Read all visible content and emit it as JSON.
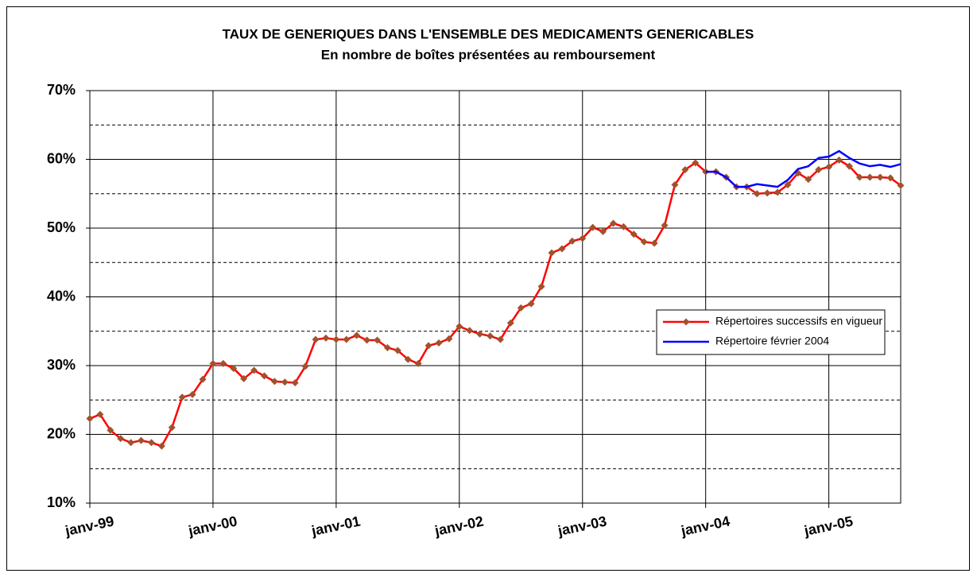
{
  "chart_data": {
    "type": "line",
    "title": "TAUX DE GENERIQUES DANS L'ENSEMBLE DES MEDICAMENTS GENERICABLES",
    "subtitle": "En nombre de boîtes présentées au remboursement",
    "categories": [
      "janv-99",
      null,
      null,
      null,
      null,
      null,
      null,
      null,
      null,
      null,
      null,
      null,
      "janv-00",
      null,
      null,
      null,
      null,
      null,
      null,
      null,
      null,
      null,
      null,
      null,
      "janv-01",
      null,
      null,
      null,
      null,
      null,
      null,
      null,
      null,
      null,
      null,
      null,
      "janv-02",
      null,
      null,
      null,
      null,
      null,
      null,
      null,
      null,
      null,
      null,
      null,
      "janv-03",
      null,
      null,
      null,
      null,
      null,
      null,
      null,
      null,
      null,
      null,
      null,
      "janv-04",
      null,
      null,
      null,
      null,
      null,
      null,
      null,
      null,
      null,
      null,
      null,
      "janv-05",
      null,
      null,
      null,
      null,
      null,
      null,
      null
    ],
    "series": [
      {
        "name": "Répertoires successifs en vigueur",
        "color": "#ff0000",
        "marker_color": "#a0522d",
        "marker": "diamond",
        "values": [
          22.3,
          22.9,
          20.6,
          19.4,
          18.8,
          19.1,
          18.8,
          18.3,
          21.0,
          25.4,
          25.8,
          28.0,
          30.3,
          30.3,
          29.6,
          28.1,
          29.3,
          28.5,
          27.7,
          27.6,
          27.5,
          29.9,
          33.8,
          34.0,
          33.8,
          33.8,
          34.4,
          33.7,
          33.7,
          32.6,
          32.2,
          30.9,
          30.3,
          32.9,
          33.3,
          33.9,
          35.7,
          35.1,
          34.6,
          34.3,
          33.8,
          36.2,
          38.4,
          39.0,
          41.5,
          46.4,
          47.0,
          48.1,
          48.5,
          50.1,
          49.5,
          50.7,
          50.2,
          49.1,
          48.0,
          47.8,
          50.4,
          56.3,
          58.5,
          59.5,
          58.2,
          58.2,
          57.4,
          56.0,
          56.0,
          55.0,
          55.1,
          55.2,
          56.3,
          58.0,
          57.1,
          58.5,
          58.9,
          59.9,
          59.0,
          57.4,
          57.4,
          57.4,
          57.3,
          56.2
        ]
      },
      {
        "name": "Répertoire février 2004",
        "color": "#0000ff",
        "marker": "none",
        "values": [
          null,
          null,
          null,
          null,
          null,
          null,
          null,
          null,
          null,
          null,
          null,
          null,
          null,
          null,
          null,
          null,
          null,
          null,
          null,
          null,
          null,
          null,
          null,
          null,
          null,
          null,
          null,
          null,
          null,
          null,
          null,
          null,
          null,
          null,
          null,
          null,
          null,
          null,
          null,
          null,
          null,
          null,
          null,
          null,
          null,
          null,
          null,
          null,
          null,
          null,
          null,
          null,
          null,
          null,
          null,
          null,
          null,
          null,
          null,
          null,
          58.2,
          58.2,
          57.4,
          56.0,
          56.0,
          56.4,
          56.2,
          56.0,
          57.0,
          58.6,
          59.0,
          60.2,
          60.4,
          61.2,
          60.2,
          59.4,
          59.0,
          59.2,
          58.9,
          59.3
        ]
      }
    ],
    "ylim": [
      10,
      70
    ],
    "yticks": [
      {
        "value": 10,
        "label": "10%"
      },
      {
        "value": 20,
        "label": "20%"
      },
      {
        "value": 30,
        "label": "30%"
      },
      {
        "value": 40,
        "label": "40%"
      },
      {
        "value": 50,
        "label": "50%"
      },
      {
        "value": 60,
        "label": "60%"
      },
      {
        "value": 70,
        "label": "70%"
      }
    ],
    "minor_yticks": [
      15,
      25,
      35,
      45,
      55,
      65
    ],
    "grid": true,
    "legend": "right"
  }
}
